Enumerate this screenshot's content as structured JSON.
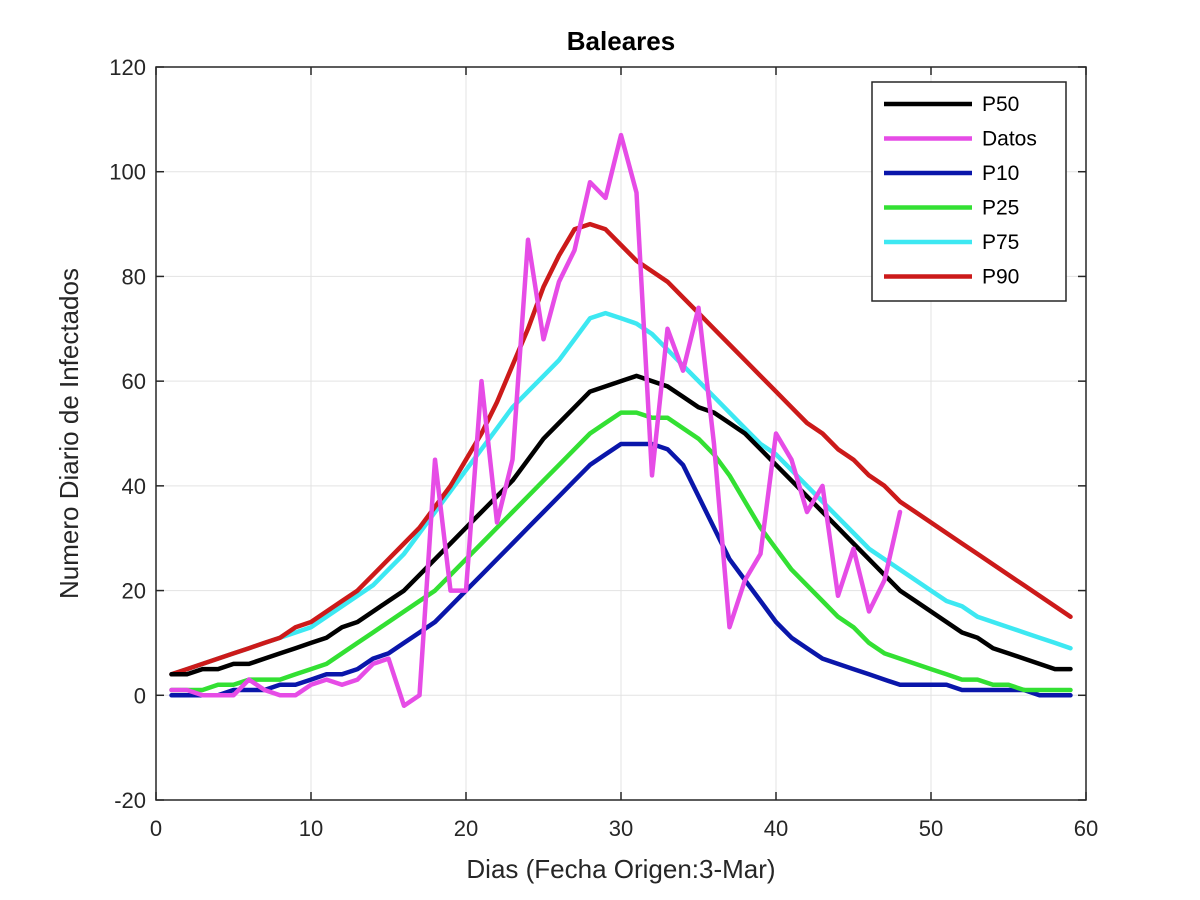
{
  "chart_data": {
    "type": "line",
    "title": "Baleares",
    "xlabel": "Dias (Fecha Origen:3-Mar)",
    "ylabel": "Numero Diario de Infectados",
    "xlim": [
      0,
      60
    ],
    "ylim": [
      -20,
      120
    ],
    "xticks": [
      0,
      10,
      20,
      30,
      40,
      50,
      60
    ],
    "yticks": [
      -20,
      0,
      20,
      40,
      60,
      80,
      100,
      120
    ],
    "grid": true,
    "legend_position": "top-right",
    "series": [
      {
        "name": "P50",
        "color": "#000000",
        "x": [
          1,
          2,
          3,
          4,
          5,
          6,
          7,
          8,
          9,
          10,
          11,
          12,
          13,
          14,
          15,
          16,
          17,
          18,
          19,
          20,
          21,
          22,
          23,
          24,
          25,
          26,
          27,
          28,
          29,
          30,
          31,
          32,
          33,
          34,
          35,
          36,
          37,
          38,
          39,
          40,
          41,
          42,
          43,
          44,
          45,
          46,
          47,
          48,
          49,
          50,
          51,
          52,
          53,
          54,
          55,
          56,
          57,
          58,
          59
        ],
        "y": [
          4,
          4,
          5,
          5,
          6,
          6,
          7,
          8,
          9,
          10,
          11,
          13,
          14,
          16,
          18,
          20,
          23,
          26,
          29,
          32,
          35,
          38,
          41,
          45,
          49,
          52,
          55,
          58,
          59,
          60,
          61,
          60,
          59,
          57,
          55,
          54,
          52,
          50,
          47,
          44,
          41,
          38,
          35,
          32,
          29,
          26,
          23,
          20,
          18,
          16,
          14,
          12,
          11,
          9,
          8,
          7,
          6,
          5,
          5
        ]
      },
      {
        "name": "Datos",
        "color": "#e64ce6",
        "x": [
          1,
          2,
          3,
          4,
          5,
          6,
          7,
          8,
          9,
          10,
          11,
          12,
          13,
          14,
          15,
          16,
          17,
          18,
          19,
          20,
          21,
          22,
          23,
          24,
          25,
          26,
          27,
          28,
          29,
          30,
          31,
          32,
          33,
          34,
          35,
          36,
          37,
          38,
          39,
          40,
          41,
          42,
          43,
          44,
          45,
          46,
          47,
          48
        ],
        "y": [
          1,
          1,
          0,
          0,
          0,
          3,
          1,
          0,
          0,
          2,
          3,
          2,
          3,
          6,
          7,
          -2,
          0,
          45,
          20,
          20,
          60,
          33,
          45,
          87,
          68,
          79,
          85,
          98,
          95,
          107,
          96,
          42,
          70,
          62,
          74,
          48,
          13,
          22,
          27,
          50,
          45,
          35,
          40,
          19,
          28,
          16,
          22,
          35
        ]
      },
      {
        "name": "P10",
        "color": "#0a16aa",
        "x": [
          1,
          2,
          3,
          4,
          5,
          6,
          7,
          8,
          9,
          10,
          11,
          12,
          13,
          14,
          15,
          16,
          17,
          18,
          19,
          20,
          21,
          22,
          23,
          24,
          25,
          26,
          27,
          28,
          29,
          30,
          31,
          32,
          33,
          34,
          35,
          36,
          37,
          38,
          39,
          40,
          41,
          42,
          43,
          44,
          45,
          46,
          47,
          48,
          49,
          50,
          51,
          52,
          53,
          54,
          55,
          56,
          57,
          58,
          59
        ],
        "y": [
          0,
          0,
          0,
          0,
          1,
          1,
          1,
          2,
          2,
          3,
          4,
          4,
          5,
          7,
          8,
          10,
          12,
          14,
          17,
          20,
          23,
          26,
          29,
          32,
          35,
          38,
          41,
          44,
          46,
          48,
          48,
          48,
          47,
          44,
          38,
          32,
          26,
          22,
          18,
          14,
          11,
          9,
          7,
          6,
          5,
          4,
          3,
          2,
          2,
          2,
          2,
          1,
          1,
          1,
          1,
          1,
          0,
          0,
          0
        ]
      },
      {
        "name": "P25",
        "color": "#33e033",
        "x": [
          1,
          2,
          3,
          4,
          5,
          6,
          7,
          8,
          9,
          10,
          11,
          12,
          13,
          14,
          15,
          16,
          17,
          18,
          19,
          20,
          21,
          22,
          23,
          24,
          25,
          26,
          27,
          28,
          29,
          30,
          31,
          32,
          33,
          34,
          35,
          36,
          37,
          38,
          39,
          40,
          41,
          42,
          43,
          44,
          45,
          46,
          47,
          48,
          49,
          50,
          51,
          52,
          53,
          54,
          55,
          56,
          57,
          58,
          59
        ],
        "y": [
          1,
          1,
          1,
          2,
          2,
          3,
          3,
          3,
          4,
          5,
          6,
          8,
          10,
          12,
          14,
          16,
          18,
          20,
          23,
          26,
          29,
          32,
          35,
          38,
          41,
          44,
          47,
          50,
          52,
          54,
          54,
          53,
          53,
          51,
          49,
          46,
          42,
          37,
          32,
          28,
          24,
          21,
          18,
          15,
          13,
          10,
          8,
          7,
          6,
          5,
          4,
          3,
          3,
          2,
          2,
          1,
          1,
          1,
          1
        ]
      },
      {
        "name": "P75",
        "color": "#3de8f2",
        "x": [
          1,
          2,
          3,
          4,
          5,
          6,
          7,
          8,
          9,
          10,
          11,
          12,
          13,
          14,
          15,
          16,
          17,
          18,
          19,
          20,
          21,
          22,
          23,
          24,
          25,
          26,
          27,
          28,
          29,
          30,
          31,
          32,
          33,
          34,
          35,
          36,
          37,
          38,
          39,
          40,
          41,
          42,
          43,
          44,
          45,
          46,
          47,
          48,
          49,
          50,
          51,
          52,
          53,
          54,
          55,
          56,
          57,
          58,
          59
        ],
        "y": [
          4,
          5,
          6,
          7,
          8,
          9,
          10,
          11,
          12,
          13,
          15,
          17,
          19,
          21,
          24,
          27,
          31,
          35,
          39,
          43,
          47,
          51,
          55,
          58,
          61,
          64,
          68,
          72,
          73,
          72,
          71,
          69,
          66,
          63,
          60,
          57,
          54,
          51,
          48,
          46,
          43,
          40,
          37,
          34,
          31,
          28,
          26,
          24,
          22,
          20,
          18,
          17,
          15,
          14,
          13,
          12,
          11,
          10,
          9
        ]
      },
      {
        "name": "P90",
        "color": "#cc1a1a",
        "x": [
          1,
          2,
          3,
          4,
          5,
          6,
          7,
          8,
          9,
          10,
          11,
          12,
          13,
          14,
          15,
          16,
          17,
          18,
          19,
          20,
          21,
          22,
          23,
          24,
          25,
          26,
          27,
          28,
          29,
          30,
          31,
          32,
          33,
          34,
          35,
          36,
          37,
          38,
          39,
          40,
          41,
          42,
          43,
          44,
          45,
          46,
          47,
          48,
          49,
          50,
          51,
          52,
          53,
          54,
          55,
          56,
          57,
          58,
          59
        ],
        "y": [
          4,
          5,
          6,
          7,
          8,
          9,
          10,
          11,
          13,
          14,
          16,
          18,
          20,
          23,
          26,
          29,
          32,
          36,
          40,
          45,
          50,
          56,
          63,
          70,
          78,
          84,
          89,
          90,
          89,
          86,
          83,
          81,
          79,
          76,
          73,
          70,
          67,
          64,
          61,
          58,
          55,
          52,
          50,
          47,
          45,
          42,
          40,
          37,
          35,
          33,
          31,
          29,
          27,
          25,
          23,
          21,
          19,
          17,
          15
        ]
      }
    ]
  }
}
